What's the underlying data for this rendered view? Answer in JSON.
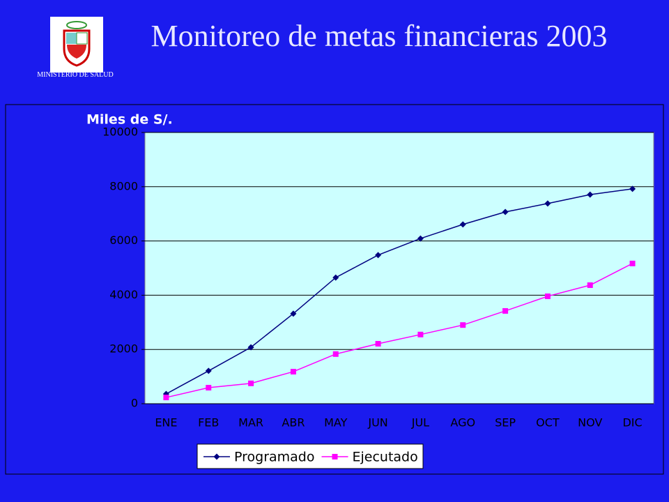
{
  "header": {
    "title": "Monitoreo de metas financieras 2003",
    "logo_caption": "MINISTERIO DE SALUD"
  },
  "chart_data": {
    "type": "line",
    "y_label": "Miles de S/.",
    "categories": [
      "ENE",
      "FEB",
      "MAR",
      "ABR",
      "MAY",
      "JUN",
      "JUL",
      "AGO",
      "SEP",
      "OCT",
      "NOV",
      "DIC"
    ],
    "series": [
      {
        "name": "Programado",
        "color": "#000080",
        "marker": "diamond",
        "values": [
          360,
          1210,
          2080,
          3320,
          4650,
          5480,
          6090,
          6610,
          7070,
          7380,
          7710,
          7920
        ]
      },
      {
        "name": "Ejecutado",
        "color": "#ff00ff",
        "marker": "square",
        "values": [
          230,
          590,
          750,
          1180,
          1830,
          2210,
          2550,
          2900,
          3420,
          3960,
          4370,
          5170
        ]
      }
    ],
    "ylim": [
      0,
      10000
    ],
    "yticks": [
      0,
      2000,
      4000,
      6000,
      8000,
      10000
    ],
    "grid": true,
    "legend": "bottom"
  }
}
